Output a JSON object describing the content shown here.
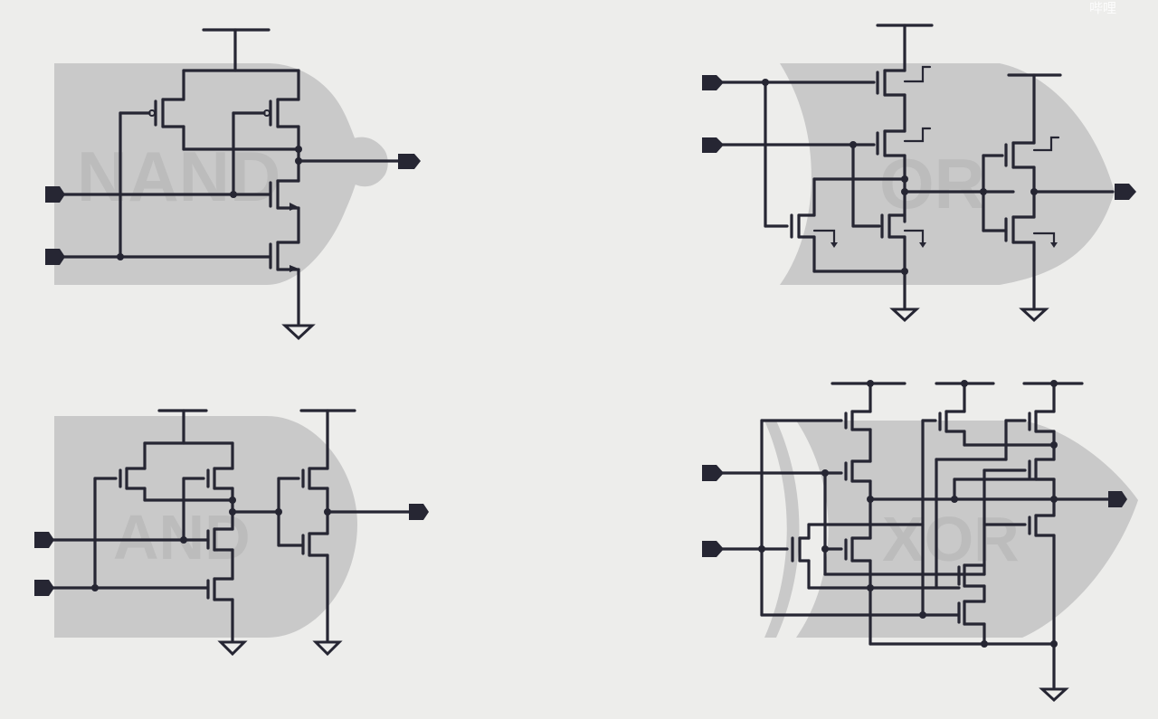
{
  "watermark": "哔哩",
  "gates": [
    {
      "id": "nand",
      "label": "NAND"
    },
    {
      "id": "or",
      "label": "OR"
    },
    {
      "id": "and",
      "label": "AND"
    },
    {
      "id": "xor",
      "label": "XOR"
    }
  ],
  "colors": {
    "background": "#ededeb",
    "wire": "#262633",
    "gate_shape": "#c9c9c9"
  }
}
